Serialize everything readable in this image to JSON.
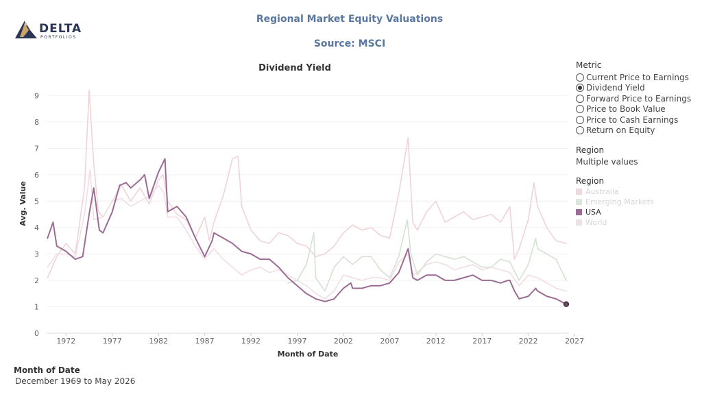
{
  "logo": {
    "name": "DELTA",
    "subtitle": "PORTFOLIOS"
  },
  "header": {
    "title": "Regional Market Equity Valuations",
    "source": "Source: MSCI"
  },
  "metric_filter": {
    "heading": "Metric",
    "options": [
      "Current Price to Earnings",
      "Dividend Yield",
      "Forward Price to Earnings",
      "Price to Book Value",
      "Price to Cash Earnings",
      "Return on Equity"
    ],
    "selected_index": 1
  },
  "region_filter": {
    "heading": "Region",
    "value": "Multiple values"
  },
  "region_legend": {
    "heading": "Region",
    "items": [
      {
        "label": "Australia",
        "color": "#efd9dc",
        "muted": true
      },
      {
        "label": "Emerging Markets",
        "color": "#dde6dc",
        "muted": true
      },
      {
        "label": "USA",
        "color": "#9c6b94",
        "muted": false
      },
      {
        "label": "World",
        "color": "#efe2e6",
        "muted": true
      }
    ]
  },
  "date_filter": {
    "heading": "Month of Date",
    "value": "December 1969 to May 2026"
  },
  "chart_data": {
    "type": "line",
    "title": "Dividend Yield",
    "xlabel": "Month of Date",
    "ylabel": "Avg. Value",
    "xlim": [
      1969.9,
      2026.4
    ],
    "ylim": [
      0,
      9.5
    ],
    "x_ticks": [
      1972,
      1977,
      1982,
      1987,
      1992,
      1997,
      2002,
      2007,
      2012,
      2017,
      2022,
      2027
    ],
    "y_ticks": [
      0,
      1,
      2,
      3,
      4,
      5,
      6,
      7,
      8,
      9
    ],
    "grid": true,
    "series": [
      {
        "name": "Australia",
        "color": "#efd3d8",
        "x": [
          1970,
          1971,
          1972,
          1973,
          1974,
          1974.5,
          1975,
          1975.5,
          1976,
          1977,
          1978,
          1979,
          1980,
          1981,
          1982,
          1982.5,
          1983,
          1984,
          1985,
          1986,
          1987,
          1987.5,
          1988,
          1989,
          1990,
          1990.6,
          1991,
          1992,
          1993,
          1994,
          1995,
          1996,
          1997,
          1998,
          1999,
          2000,
          2001,
          2002,
          2003,
          2004,
          2005,
          2006,
          2007,
          2008,
          2009,
          2009.5,
          2010,
          2011,
          2012,
          2013,
          2014,
          2015,
          2016,
          2017,
          2018,
          2019,
          2020,
          2020.5,
          2021,
          2022,
          2022.6,
          2023,
          2024,
          2025,
          2026.1
        ],
        "values": [
          2.1,
          2.9,
          3.4,
          3.0,
          5.5,
          9.2,
          6.4,
          4.6,
          4.4,
          5.0,
          5.6,
          5.0,
          5.5,
          4.9,
          5.8,
          6.0,
          5.0,
          4.5,
          4.3,
          3.6,
          4.4,
          3.5,
          4.2,
          5.2,
          6.6,
          6.7,
          4.8,
          3.9,
          3.5,
          3.4,
          3.8,
          3.7,
          3.4,
          3.3,
          2.9,
          3.0,
          3.3,
          3.8,
          4.1,
          3.9,
          4.0,
          3.7,
          3.6,
          5.3,
          7.4,
          4.2,
          3.9,
          4.6,
          5.0,
          4.2,
          4.4,
          4.6,
          4.3,
          4.4,
          4.5,
          4.2,
          4.8,
          2.8,
          3.2,
          4.3,
          5.7,
          4.8,
          4.0,
          3.5,
          3.4
        ]
      },
      {
        "name": "World",
        "color": "#f2dde2",
        "x": [
          1970,
          1971,
          1972,
          1973,
          1974,
          1974.6,
          1975,
          1976,
          1977,
          1978,
          1979,
          1980,
          1981,
          1982,
          1982.6,
          1983,
          1984,
          1985,
          1986,
          1987,
          1988,
          1989,
          1990,
          1991,
          1992,
          1993,
          1994,
          1995,
          1996,
          1997,
          1998,
          1999,
          2000,
          2001,
          2002,
          2003,
          2004,
          2005,
          2006,
          2007,
          2008,
          2009,
          2009.5,
          2010,
          2011,
          2012,
          2013,
          2014,
          2015,
          2016,
          2017,
          2018,
          2019,
          2020,
          2021,
          2022,
          2023,
          2024,
          2025,
          2026.1
        ],
        "values": [
          2.5,
          3.0,
          3.0,
          2.9,
          4.5,
          6.2,
          4.3,
          4.4,
          5.0,
          5.1,
          4.8,
          5.0,
          5.2,
          5.6,
          5.3,
          4.4,
          4.4,
          3.9,
          3.3,
          2.8,
          3.2,
          2.8,
          2.5,
          2.2,
          2.4,
          2.5,
          2.3,
          2.4,
          2.2,
          2.0,
          1.8,
          1.5,
          1.3,
          1.6,
          2.2,
          2.1,
          2.0,
          2.1,
          2.1,
          2.0,
          2.7,
          3.0,
          2.2,
          2.3,
          2.6,
          2.7,
          2.6,
          2.4,
          2.5,
          2.6,
          2.4,
          2.5,
          2.4,
          2.3,
          1.8,
          2.2,
          2.1,
          1.9,
          1.7,
          1.6
        ]
      },
      {
        "name": "Emerging Markets",
        "color": "#d5e2d3",
        "x": [
          1996,
          1997,
          1998,
          1998.8,
          1999,
          2000,
          2001,
          2002,
          2003,
          2004,
          2005,
          2006,
          2007,
          2008,
          2008.9,
          2009.3,
          2010,
          2011,
          2012,
          2013,
          2014,
          2015,
          2016,
          2017,
          2018,
          2019,
          2020,
          2021,
          2022,
          2022.8,
          2023,
          2024,
          2025,
          2026.1
        ],
        "values": [
          1.9,
          2.0,
          2.6,
          3.8,
          2.1,
          1.6,
          2.5,
          2.9,
          2.6,
          2.9,
          2.9,
          2.4,
          2.1,
          2.9,
          4.3,
          3.0,
          2.2,
          2.7,
          3.0,
          2.9,
          2.8,
          2.9,
          2.7,
          2.5,
          2.5,
          2.8,
          2.7,
          2.0,
          2.6,
          3.6,
          3.2,
          3.0,
          2.8,
          2.0
        ]
      },
      {
        "name": "USA",
        "color": "#9c6b94",
        "x": [
          1970,
          1970.6,
          1971,
          1972,
          1973,
          1973.8,
          1974.5,
          1975,
          1975.6,
          1976,
          1977,
          1977.8,
          1978.5,
          1979,
          1980,
          1980.5,
          1981,
          1982,
          1982.7,
          1983,
          1984,
          1985,
          1986,
          1987,
          1987.8,
          1988,
          1989,
          1990,
          1991,
          1992,
          1993,
          1994,
          1995,
          1996,
          1997,
          1998,
          1999,
          2000,
          2001,
          2002,
          2002.8,
          2003,
          2004,
          2005,
          2006,
          2007,
          2008,
          2009,
          2009.2,
          2009.5,
          2010,
          2011,
          2012,
          2013,
          2014,
          2015,
          2016,
          2017,
          2018,
          2019,
          2019.8,
          2020,
          2020.5,
          2021,
          2022,
          2022.8,
          2023,
          2024,
          2025,
          2026.1
        ],
        "values": [
          3.6,
          4.2,
          3.3,
          3.1,
          2.8,
          2.9,
          4.5,
          5.5,
          3.9,
          3.8,
          4.6,
          5.6,
          5.7,
          5.5,
          5.8,
          6.0,
          5.1,
          6.1,
          6.6,
          4.6,
          4.8,
          4.4,
          3.6,
          2.9,
          3.5,
          3.8,
          3.6,
          3.4,
          3.1,
          3.0,
          2.8,
          2.8,
          2.5,
          2.1,
          1.8,
          1.5,
          1.3,
          1.2,
          1.3,
          1.7,
          1.9,
          1.7,
          1.7,
          1.8,
          1.8,
          1.9,
          2.3,
          3.2,
          2.8,
          2.1,
          2.0,
          2.2,
          2.2,
          2.0,
          2.0,
          2.1,
          2.2,
          2.0,
          2.0,
          1.9,
          2.0,
          2.0,
          1.6,
          1.3,
          1.4,
          1.7,
          1.6,
          1.4,
          1.3,
          1.1
        ]
      }
    ]
  }
}
